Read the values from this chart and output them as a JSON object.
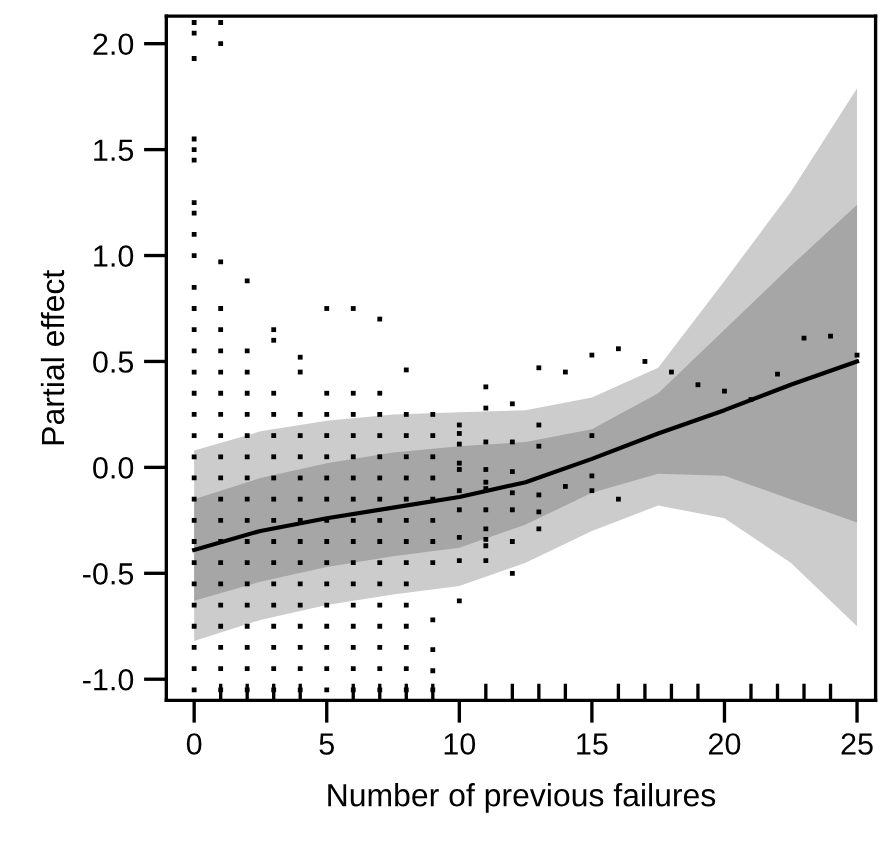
{
  "chart_data": {
    "type": "line",
    "xlabel": "Number of previous failures",
    "ylabel": "Partial effect",
    "xlim": [
      -1.05,
      25.7
    ],
    "ylim": [
      -1.1,
      2.13
    ],
    "xticks": [
      0,
      {
        "value": 1,
        "label": null
      },
      {
        "value": 2,
        "label": null
      },
      {
        "value": 3,
        "label": null
      },
      {
        "value": 4,
        "label": null
      },
      5,
      {
        "value": 6,
        "label": null
      },
      {
        "value": 7,
        "label": null
      },
      {
        "value": 8,
        "label": null
      },
      {
        "value": 9,
        "label": null
      },
      10,
      {
        "value": 11,
        "label": null
      },
      {
        "value": 12,
        "label": null
      },
      {
        "value": 13,
        "label": null
      },
      {
        "value": 14,
        "label": null
      },
      15,
      {
        "value": 16,
        "label": null
      },
      {
        "value": 17,
        "label": null
      },
      {
        "value": 18,
        "label": null
      },
      {
        "value": 19,
        "label": null
      },
      20,
      {
        "value": 21,
        "label": null
      },
      {
        "value": 22,
        "label": null
      },
      {
        "value": 23,
        "label": null
      },
      {
        "value": 24,
        "label": null
      },
      25
    ],
    "yticks": [
      {
        "value": -1,
        "label": "-1.0"
      },
      {
        "value": -0.5,
        "label": "-0.5"
      },
      {
        "value": 0,
        "label": "0.0"
      },
      {
        "value": 0.5,
        "label": "0.5"
      },
      {
        "value": 1,
        "label": "1.0"
      },
      {
        "value": 1.5,
        "label": "1.5"
      },
      {
        "value": 2,
        "label": "2.0"
      }
    ],
    "grid": false,
    "legend": false,
    "series": [
      {
        "color": "#cccccc",
        "x": [
          0,
          2.5,
          5,
          7.5,
          10,
          12.5,
          15,
          17.5,
          20,
          22.5,
          25
        ],
        "values": [
          null,
          null,
          null,
          null,
          null,
          null,
          null,
          null,
          null,
          null,
          null
        ],
        "lower": [
          -0.82,
          -0.72,
          -0.65,
          -0.6,
          -0.56,
          -0.45,
          -0.3,
          -0.18,
          -0.24,
          -0.45,
          -0.75
        ],
        "upper": [
          0.08,
          0.17,
          0.22,
          0.25,
          0.26,
          0.27,
          0.33,
          0.47,
          0.88,
          1.3,
          1.79
        ]
      },
      {
        "color": "#a6a6a6",
        "x": [
          0,
          2.5,
          5,
          7.5,
          10,
          12.5,
          15,
          17.5,
          20,
          22.5,
          25
        ],
        "values": [
          null,
          null,
          null,
          null,
          null,
          null,
          null,
          null,
          null,
          null,
          null
        ],
        "lower": [
          -0.63,
          -0.54,
          -0.47,
          -0.42,
          -0.38,
          -0.27,
          -0.12,
          -0.03,
          -0.04,
          -0.15,
          -0.26
        ],
        "upper": [
          -0.15,
          -0.05,
          0.02,
          0.07,
          0.1,
          0.12,
          0.18,
          0.35,
          0.65,
          0.95,
          1.24
        ]
      },
      {
        "color": "#000000",
        "x": [
          0,
          2.5,
          5,
          7.5,
          10,
          12.5,
          15,
          17.5,
          20,
          22.5,
          25
        ],
        "values": [
          -0.39,
          -0.3,
          -0.24,
          -0.19,
          -0.14,
          -0.07,
          0.04,
          0.16,
          0.27,
          0.39,
          0.5
        ]
      },
      {
        "type": "scatter",
        "color": "#000000",
        "marker": "square",
        "x": [
          0,
          0,
          0,
          0,
          0,
          0,
          0,
          0,
          0,
          0,
          0,
          0,
          0,
          0,
          0,
          0,
          0,
          0,
          0,
          0,
          0,
          0,
          0,
          0,
          0,
          0,
          0,
          0,
          0,
          0,
          1,
          1,
          1,
          1,
          1,
          1,
          1,
          1,
          1,
          1,
          1,
          1,
          1,
          1,
          1,
          1,
          1,
          1,
          1,
          1,
          1,
          1,
          2,
          2,
          2,
          2,
          2,
          2,
          2,
          2,
          2,
          2,
          2,
          2,
          2,
          2,
          2,
          2,
          2,
          2,
          3,
          3,
          3,
          3,
          3,
          3,
          3,
          3,
          3,
          3,
          3,
          3,
          3,
          3,
          3,
          3,
          3,
          4,
          4,
          4,
          4,
          4,
          4,
          4,
          4,
          4,
          4,
          4,
          4,
          4,
          4,
          4,
          4,
          5,
          5,
          5,
          5,
          5,
          5,
          5,
          5,
          5,
          5,
          5,
          5,
          5,
          5,
          5,
          5,
          6,
          6,
          6,
          6,
          6,
          6,
          6,
          6,
          6,
          6,
          6,
          6,
          6,
          6,
          6,
          6,
          7,
          7,
          7,
          7,
          7,
          7,
          7,
          7,
          7,
          7,
          7,
          7,
          7,
          7,
          7,
          7,
          8,
          8,
          8,
          8,
          8,
          8,
          8,
          8,
          8,
          8,
          8,
          8,
          8,
          8,
          8,
          9,
          9,
          9,
          9,
          9,
          9,
          9,
          9,
          9,
          9,
          9,
          9,
          10,
          10,
          10,
          10,
          10,
          10,
          10,
          10,
          10,
          10,
          11,
          11,
          11,
          11,
          11,
          11,
          11,
          11,
          11,
          11,
          11,
          12,
          12,
          12,
          12,
          12,
          12,
          12,
          13,
          13,
          13,
          13,
          13,
          13,
          14,
          14,
          15,
          15,
          15,
          15,
          16,
          16,
          17,
          18,
          19,
          20,
          21,
          22,
          23,
          24,
          25
        ],
        "values": [
          -1.05,
          -0.95,
          -0.85,
          -0.75,
          -0.65,
          -0.55,
          -0.45,
          -0.35,
          -0.25,
          -0.15,
          -0.05,
          0.05,
          0.15,
          0.25,
          0.35,
          0.45,
          0.55,
          0.65,
          0.75,
          0.85,
          1.0,
          1.1,
          1.2,
          1.25,
          1.45,
          1.5,
          1.55,
          1.93,
          2.05,
          2.1,
          -1.05,
          -0.95,
          -0.85,
          -0.75,
          -0.65,
          -0.55,
          -0.45,
          -0.35,
          -0.25,
          -0.15,
          -0.05,
          0.05,
          0.15,
          0.25,
          0.35,
          0.45,
          0.55,
          0.65,
          0.75,
          0.97,
          2.0,
          2.1,
          -1.05,
          -0.95,
          -0.85,
          -0.75,
          -0.65,
          -0.55,
          -0.45,
          -0.35,
          -0.25,
          -0.15,
          -0.05,
          0.05,
          0.15,
          0.25,
          0.35,
          0.45,
          0.55,
          0.88,
          -1.05,
          -0.95,
          -0.85,
          -0.75,
          -0.65,
          -0.55,
          -0.45,
          -0.35,
          -0.25,
          -0.15,
          -0.05,
          0.05,
          0.15,
          0.25,
          0.35,
          0.6,
          0.65,
          -1.05,
          -0.95,
          -0.85,
          -0.75,
          -0.65,
          -0.55,
          -0.45,
          -0.35,
          -0.25,
          -0.15,
          -0.05,
          0.05,
          0.15,
          0.25,
          0.45,
          0.52,
          -1.05,
          -0.95,
          -0.85,
          -0.75,
          -0.65,
          -0.55,
          -0.45,
          -0.35,
          -0.25,
          -0.15,
          -0.05,
          0.05,
          0.15,
          0.25,
          0.35,
          0.75,
          -1.05,
          -0.95,
          -0.85,
          -0.75,
          -0.65,
          -0.55,
          -0.45,
          -0.35,
          -0.25,
          -0.15,
          -0.05,
          0.05,
          0.15,
          0.25,
          0.35,
          0.75,
          -1.05,
          -0.95,
          -0.85,
          -0.75,
          -0.65,
          -0.55,
          -0.45,
          -0.35,
          -0.25,
          -0.15,
          -0.05,
          0.05,
          0.15,
          0.25,
          0.35,
          0.7,
          -1.05,
          -0.95,
          -0.85,
          -0.75,
          -0.65,
          -0.55,
          -0.45,
          -0.35,
          -0.25,
          -0.15,
          -0.05,
          0.05,
          0.15,
          0.25,
          0.46,
          -1.05,
          -0.96,
          -0.86,
          -0.72,
          -0.45,
          -0.35,
          -0.25,
          -0.15,
          -0.05,
          0.05,
          0.15,
          0.25,
          0.2,
          0.16,
          0.11,
          0.02,
          -0.01,
          -0.11,
          -0.2,
          -0.33,
          -0.44,
          -0.63,
          0.38,
          0.28,
          0.12,
          -0.01,
          -0.07,
          -0.1,
          -0.2,
          -0.29,
          -0.34,
          -0.37,
          -0.44,
          0.3,
          0.12,
          -0.02,
          -0.12,
          -0.2,
          -0.35,
          -0.5,
          0.47,
          0.2,
          0.1,
          -0.13,
          -0.21,
          -0.29,
          0.45,
          -0.09,
          0.53,
          0.15,
          -0.04,
          -0.11,
          0.56,
          -0.15,
          0.5,
          0.45,
          0.39,
          0.36,
          0.32,
          0.44,
          0.61,
          0.62,
          0.53
        ]
      }
    ]
  }
}
